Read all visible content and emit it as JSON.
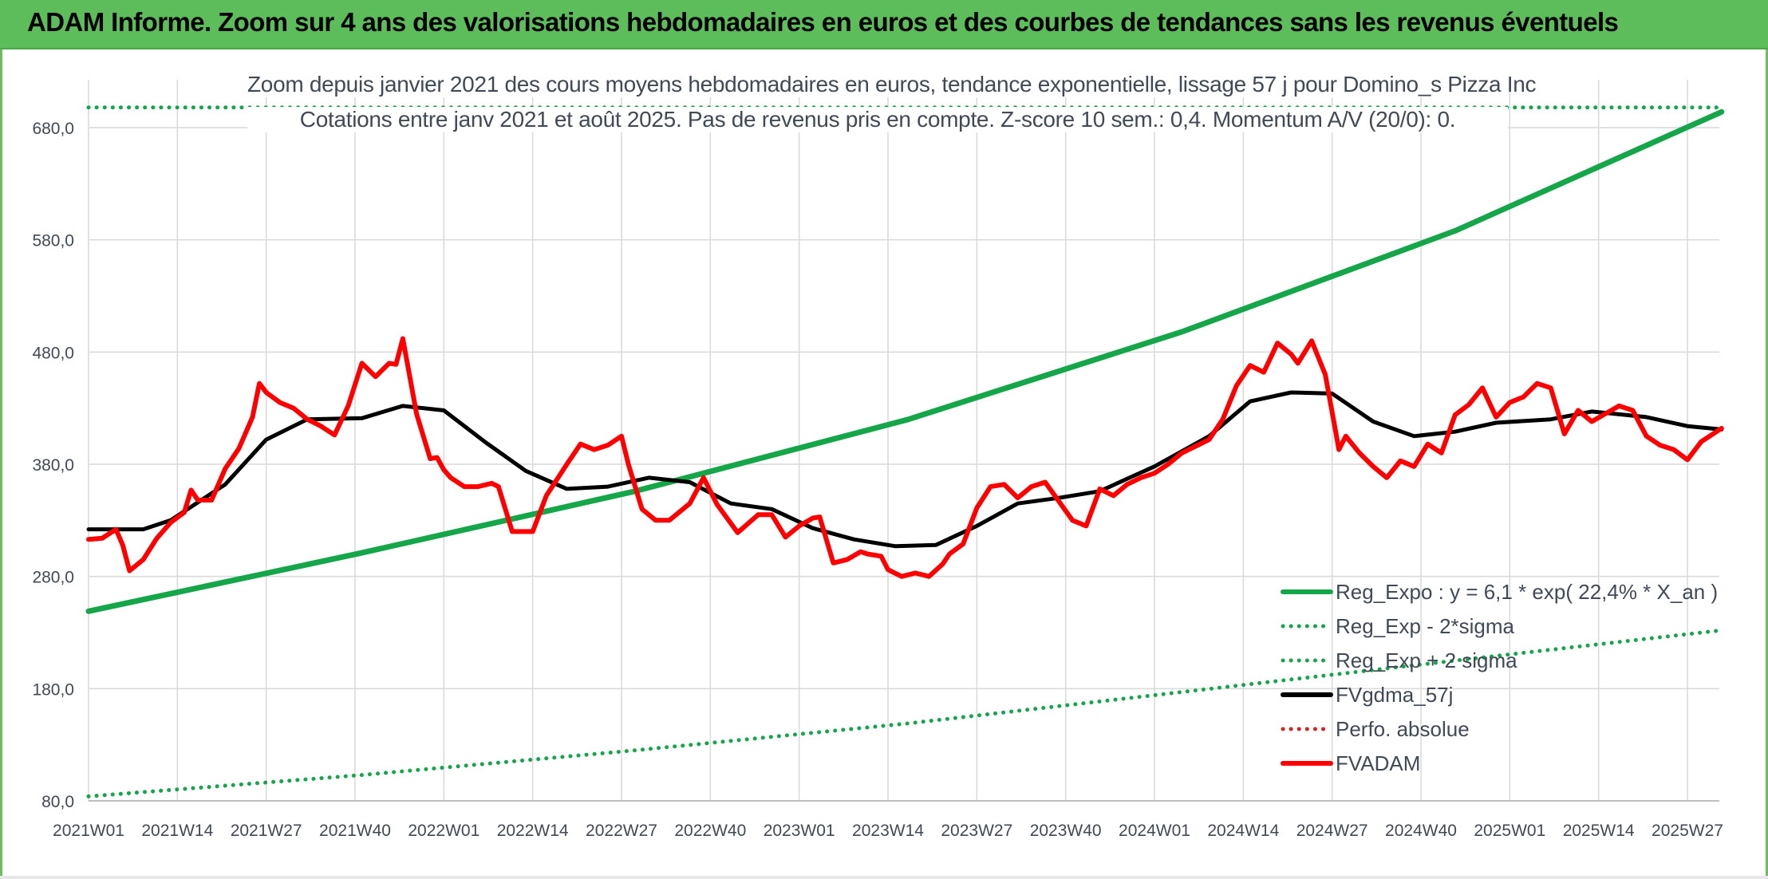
{
  "banner": {
    "title": "ADAM Informe. Zoom sur 4 ans des valorisations hebdomadaires en euros et des courbes de tendances sans les revenus éventuels"
  },
  "chart_data": {
    "type": "line",
    "title_line1": "Zoom depuis janvier 2021 des cours moyens hebdomadaires en euros, tendance exponentielle, lissage 57 j pour Domino_s Pizza Inc",
    "title_line2": "Cotations entre janv 2021 et août 2025. Pas de revenus pris en compte. Z-score 10 sem.: 0,4. Momentum A/V (20/0): 0.",
    "xlabel": "",
    "ylabel": "",
    "ylim": [
      80,
      720
    ],
    "y_ticks": [
      80,
      180,
      280,
      380,
      480,
      580,
      680
    ],
    "y_tick_labels": [
      "80,0",
      "180,0",
      "280,0",
      "380,0",
      "480,0",
      "580,0",
      "680,0"
    ],
    "x_tick_labels": [
      "2021W01",
      "2021W14",
      "2021W27",
      "2021W40",
      "2022W01",
      "2022W14",
      "2022W27",
      "2022W40",
      "2023W01",
      "2023W14",
      "2023W27",
      "2023W40",
      "2024W01",
      "2024W14",
      "2024W27",
      "2024W40",
      "2025W01",
      "2025W14",
      "2025W27"
    ],
    "x_tick_weeks": [
      0,
      13,
      26,
      39,
      52,
      65,
      78,
      91,
      104,
      117,
      130,
      143,
      156,
      169,
      182,
      195,
      208,
      221,
      234
    ],
    "x_range_weeks": [
      0,
      239
    ],
    "grid": true,
    "legend_position": "bottom-right",
    "series": [
      {
        "name": "Reg_Expo : y = 6,1 * exp( 22,4% *  X_an )",
        "color": "#16a64a",
        "style": "solid",
        "weeks": [
          0,
          40,
          80,
          120,
          160,
          200,
          239
        ],
        "values": [
          249,
          301,
          356,
          420,
          498,
          588,
          694
        ]
      },
      {
        "name": "Reg_Exp - 2*sigma",
        "color": "#16a64a",
        "style": "dotted",
        "weeks": [
          0,
          40,
          80,
          120,
          160,
          200,
          239
        ],
        "values": [
          84,
          103,
          125,
          149,
          177,
          205,
          232
        ]
      },
      {
        "name": "Reg_Exp + 2 sigma",
        "color": "#16a64a",
        "style": "dotted",
        "weeks": [
          0,
          239
        ],
        "values": [
          698,
          698
        ]
      },
      {
        "name": "FVgdma_57j",
        "color": "#000000",
        "style": "solid",
        "weeks": [
          0,
          8,
          12,
          20,
          26,
          32,
          40,
          46,
          52,
          58,
          64,
          70,
          76,
          82,
          88,
          94,
          100,
          106,
          112,
          118,
          124,
          130,
          136,
          142,
          148,
          156,
          164,
          170,
          176,
          182,
          188,
          194,
          200,
          206,
          214,
          220,
          228,
          234,
          239
        ],
        "values": [
          322,
          322,
          330,
          362,
          402,
          420,
          421,
          432,
          428,
          400,
          374,
          358,
          360,
          368,
          364,
          345,
          340,
          323,
          313,
          307,
          308,
          325,
          345,
          350,
          356,
          378,
          405,
          436,
          444,
          443,
          418,
          405,
          409,
          417,
          420,
          427,
          422,
          414,
          411
        ]
      },
      {
        "name": "Perfo. absolue",
        "color": "#e0201c",
        "style": "dotted",
        "weeks": [],
        "values": []
      },
      {
        "name": "FVADAM",
        "color": "#ff0000",
        "style": "solid",
        "weeks": [
          0,
          2,
          4,
          5,
          6,
          8,
          10,
          12,
          14,
          15,
          16,
          18,
          20,
          22,
          24,
          25,
          26,
          28,
          30,
          32,
          34,
          36,
          38,
          40,
          42,
          44,
          45,
          46,
          48,
          50,
          51,
          52,
          53,
          55,
          57,
          59,
          60,
          62,
          65,
          67,
          70,
          72,
          74,
          76,
          78,
          79,
          81,
          83,
          85,
          88,
          90,
          92,
          95,
          98,
          100,
          102,
          104,
          106,
          107,
          109,
          111,
          113,
          114,
          116,
          117,
          119,
          121,
          123,
          125,
          126,
          128,
          130,
          132,
          134,
          136,
          138,
          140,
          142,
          144,
          146,
          148,
          150,
          152,
          154,
          156,
          158,
          160,
          162,
          164,
          166,
          168,
          170,
          172,
          174,
          176,
          177,
          179,
          181,
          183,
          184,
          186,
          188,
          190,
          192,
          194,
          196,
          198,
          200,
          202,
          204,
          206,
          208,
          210,
          212,
          214,
          216,
          218,
          220,
          222,
          224,
          226,
          228,
          230,
          232,
          234,
          236,
          239
        ],
        "values": [
          313,
          314,
          322,
          308,
          285,
          295,
          314,
          328,
          337,
          357,
          348,
          348,
          376,
          394,
          422,
          452,
          444,
          435,
          430,
          420,
          414,
          406,
          432,
          470,
          458,
          470,
          469,
          492,
          425,
          385,
          386,
          375,
          368,
          360,
          360,
          363,
          360,
          320,
          320,
          352,
          380,
          398,
          393,
          397,
          405,
          380,
          340,
          330,
          330,
          345,
          368,
          344,
          319,
          335,
          335,
          315,
          325,
          332,
          333,
          292,
          295,
          302,
          300,
          298,
          286,
          280,
          283,
          280,
          291,
          300,
          309,
          341,
          360,
          362,
          350,
          360,
          364,
          347,
          330,
          325,
          358,
          352,
          362,
          368,
          372,
          380,
          390,
          396,
          402,
          420,
          450,
          468,
          462,
          488,
          478,
          470,
          490,
          460,
          393,
          405,
          390,
          378,
          368,
          383,
          378,
          398,
          390,
          424,
          433,
          448,
          422,
          435,
          440,
          452,
          448,
          407,
          428,
          418,
          425,
          432,
          428,
          405,
          397,
          393,
          384,
          400,
          412
        ]
      }
    ]
  }
}
